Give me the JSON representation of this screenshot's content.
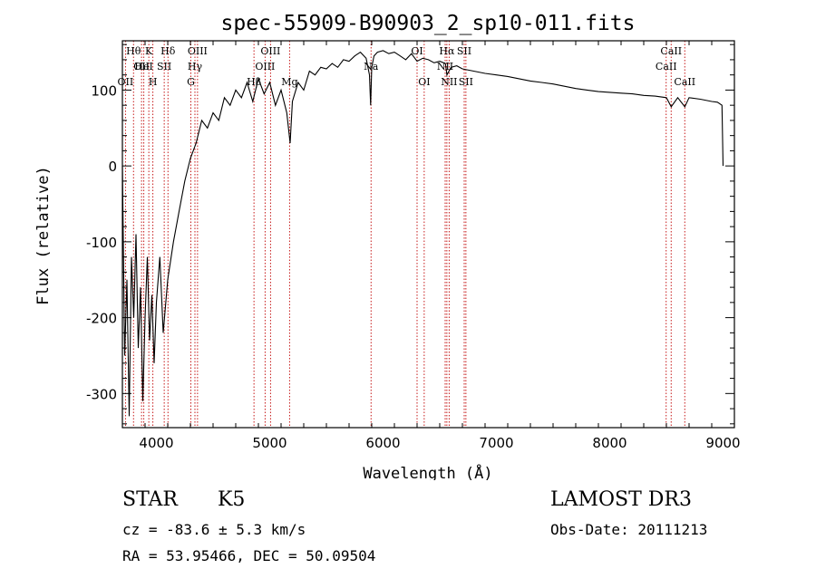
{
  "chart_data": {
    "type": "line",
    "title": "spec-55909-B90903_2_sp10-011.fits",
    "xlabel": "Wavelength (Å)",
    "ylabel": "Flux (relative)",
    "xlim": [
      3700,
      9100
    ],
    "ylim": [
      -345,
      165
    ],
    "x_ticks": [
      4000,
      5000,
      6000,
      7000,
      8000,
      9000
    ],
    "y_ticks": [
      -300,
      -200,
      -100,
      0,
      100
    ],
    "grid": false,
    "series": [
      {
        "color": "#000000",
        "x": [
          3700,
          3720,
          3740,
          3760,
          3780,
          3800,
          3820,
          3840,
          3860,
          3880,
          3900,
          3920,
          3940,
          3960,
          3980,
          4000,
          4030,
          4060,
          4100,
          4150,
          4200,
          4250,
          4300,
          4350,
          4400,
          4450,
          4500,
          4550,
          4600,
          4650,
          4700,
          4750,
          4800,
          4850,
          4900,
          4950,
          5000,
          5050,
          5100,
          5150,
          5180,
          5200,
          5250,
          5300,
          5350,
          5400,
          5450,
          5500,
          5550,
          5600,
          5650,
          5700,
          5750,
          5800,
          5850,
          5880,
          5890,
          5900,
          5920,
          5950,
          6000,
          6050,
          6100,
          6150,
          6200,
          6250,
          6300,
          6350,
          6400,
          6450,
          6500,
          6550,
          6563,
          6600,
          6650,
          6700,
          6800,
          6900,
          7000,
          7100,
          7200,
          7300,
          7400,
          7500,
          7600,
          7700,
          7800,
          7900,
          8000,
          8100,
          8200,
          8300,
          8400,
          8500,
          8542,
          8600,
          8662,
          8700,
          8800,
          8900,
          8950,
          8990,
          9000
        ],
        "y": [
          0,
          -250,
          -150,
          -330,
          -120,
          -200,
          -90,
          -240,
          -160,
          -310,
          -200,
          -120,
          -230,
          -170,
          -260,
          -180,
          -120,
          -220,
          -150,
          -100,
          -60,
          -20,
          10,
          30,
          60,
          50,
          70,
          60,
          90,
          80,
          100,
          90,
          110,
          85,
          115,
          95,
          110,
          80,
          100,
          70,
          30,
          85,
          110,
          100,
          125,
          120,
          130,
          128,
          135,
          130,
          140,
          138,
          145,
          150,
          142,
          120,
          80,
          130,
          145,
          150,
          152,
          148,
          150,
          145,
          140,
          148,
          138,
          142,
          140,
          136,
          138,
          135,
          120,
          130,
          132,
          128,
          125,
          122,
          120,
          118,
          115,
          112,
          110,
          108,
          105,
          102,
          100,
          98,
          97,
          96,
          95,
          93,
          92,
          90,
          78,
          90,
          78,
          90,
          88,
          85,
          84,
          80,
          0
        ]
      }
    ],
    "lines": [
      {
        "w": 3727,
        "labels": [
          {
            "t": "OII",
            "row": 2
          }
        ]
      },
      {
        "w": 3798,
        "labels": [
          {
            "t": "Hθ",
            "row": 0
          }
        ]
      },
      {
        "w": 3869,
        "labels": [
          {
            "t": "OII",
            "row": 1
          }
        ]
      },
      {
        "w": 3889,
        "labels": [
          {
            "t": "HeI",
            "row": 1
          }
        ]
      },
      {
        "w": 3933,
        "labels": [
          {
            "t": "K",
            "row": 0
          }
        ]
      },
      {
        "w": 3969,
        "labels": [
          {
            "t": "H",
            "row": 2
          }
        ]
      },
      {
        "w": 4069,
        "labels": [
          {
            "t": "SII",
            "row": 1
          }
        ]
      },
      {
        "w": 4102,
        "labels": [
          {
            "t": "Hδ",
            "row": 0
          }
        ]
      },
      {
        "w": 4304,
        "labels": [
          {
            "t": "G",
            "row": 2
          }
        ]
      },
      {
        "w": 4340,
        "labels": [
          {
            "t": "Hγ",
            "row": 1
          }
        ]
      },
      {
        "w": 4363,
        "labels": [
          {
            "t": "OIII",
            "row": 0
          }
        ]
      },
      {
        "w": 4861,
        "labels": [
          {
            "t": "Hβ",
            "row": 2
          }
        ]
      },
      {
        "w": 4959,
        "labels": [
          {
            "t": "OIII",
            "row": 1
          }
        ]
      },
      {
        "w": 5007,
        "labels": [
          {
            "t": "OIII",
            "row": 0
          }
        ]
      },
      {
        "w": 5175,
        "labels": [
          {
            "t": "Mg",
            "row": 2
          }
        ]
      },
      {
        "w": 5894,
        "labels": [
          {
            "t": "Na",
            "row": 1
          }
        ]
      },
      {
        "w": 6300,
        "labels": [
          {
            "t": "OI",
            "row": 0
          }
        ]
      },
      {
        "w": 6363,
        "labels": [
          {
            "t": "OI",
            "row": 2
          }
        ]
      },
      {
        "w": 6548,
        "labels": [
          {
            "t": "NII",
            "row": 1
          }
        ]
      },
      {
        "w": 6563,
        "labels": [
          {
            "t": "Hα",
            "row": 0
          }
        ]
      },
      {
        "w": 6583,
        "labels": [
          {
            "t": "NII",
            "row": 2
          }
        ]
      },
      {
        "w": 6716,
        "labels": [
          {
            "t": "SII",
            "row": 0
          }
        ]
      },
      {
        "w": 6731,
        "labels": [
          {
            "t": "SII",
            "row": 2
          }
        ]
      },
      {
        "w": 8498,
        "labels": [
          {
            "t": "CaII",
            "row": 1
          }
        ]
      },
      {
        "w": 8542,
        "labels": [
          {
            "t": "CaII",
            "row": 0
          }
        ]
      },
      {
        "w": 8662,
        "labels": [
          {
            "t": "CaII",
            "row": 2
          }
        ]
      }
    ]
  },
  "info": {
    "class_label": "STAR",
    "subclass": "K5",
    "survey": "LAMOST DR3",
    "cz": "cz = -83.6 ± 5.3 km/s",
    "obs_date": "Obs-Date: 20111213",
    "coords": "RA =  53.95466, DEC =  50.09504"
  },
  "colors": {
    "line_marker": "#c00000",
    "spectrum": "#000000",
    "axes": "#000000"
  }
}
